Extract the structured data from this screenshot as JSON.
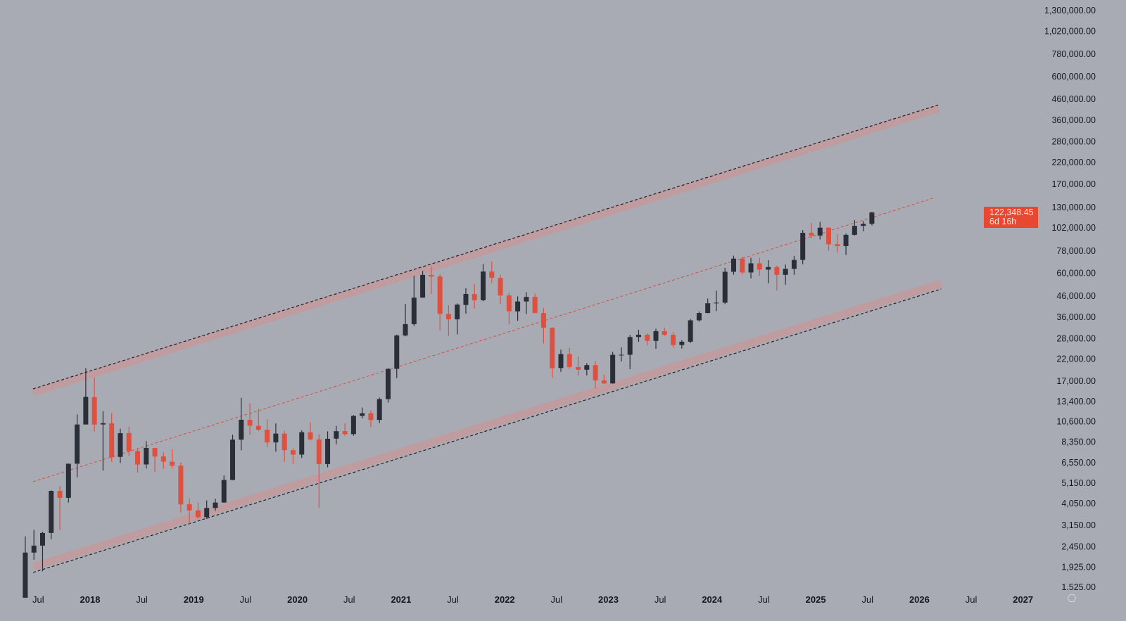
{
  "chart_data": {
    "type": "candlestick",
    "title": "",
    "y_scale": "log",
    "ylim": [
      1525,
      1300000
    ],
    "xlim": [
      "2017-04",
      "2027-01"
    ],
    "grid": false,
    "colors": {
      "background": "#a9abb4",
      "up": "#2a2e39",
      "down": "#e0503f",
      "band": "#c49a9d",
      "mid_line": "#d2503f",
      "price_tag": "#e8482f"
    },
    "y_ticks": [
      "1,300,000.00",
      "1,020,000.00",
      "780,000.00",
      "600,000.00",
      "460,000.00",
      "360,000.00",
      "280,000.00",
      "220,000.00",
      "170,000.00",
      "130,000.00",
      "102,000.00",
      "78,000.00",
      "60,000.00",
      "46,000.00",
      "36,000.00",
      "28,000.00",
      "22,000.00",
      "17,000.00",
      "13,400.00",
      "10,600.00",
      "8,350.00",
      "6,550.00",
      "5,150.00",
      "4,050.00",
      "3,150.00",
      "2,450.00",
      "1,925.00",
      "1.525.00"
    ],
    "y_tick_values": [
      1300000,
      1020000,
      780000,
      600000,
      460000,
      360000,
      280000,
      220000,
      170000,
      130000,
      102000,
      78000,
      60000,
      46000,
      36000,
      28000,
      22000,
      17000,
      13400,
      10600,
      8350,
      6550,
      5150,
      4050,
      3150,
      2450,
      1925,
      1525
    ],
    "x_ticks": [
      {
        "label": "Jul",
        "date": 2017.5,
        "year": false
      },
      {
        "label": "2018",
        "date": 2018,
        "year": true
      },
      {
        "label": "Jul",
        "date": 2018.5,
        "year": false
      },
      {
        "label": "2019",
        "date": 2019,
        "year": true
      },
      {
        "label": "Jul",
        "date": 2019.5,
        "year": false
      },
      {
        "label": "2020",
        "date": 2020,
        "year": true
      },
      {
        "label": "Jul",
        "date": 2020.5,
        "year": false
      },
      {
        "label": "2021",
        "date": 2021,
        "year": true
      },
      {
        "label": "Jul",
        "date": 2021.5,
        "year": false
      },
      {
        "label": "2022",
        "date": 2022,
        "year": true
      },
      {
        "label": "Jul",
        "date": 2022.5,
        "year": false
      },
      {
        "label": "2023",
        "date": 2023,
        "year": true
      },
      {
        "label": "Jul",
        "date": 2023.5,
        "year": false
      },
      {
        "label": "2024",
        "date": 2024,
        "year": true
      },
      {
        "label": "Jul",
        "date": 2024.5,
        "year": false
      },
      {
        "label": "2025",
        "date": 2025,
        "year": true
      },
      {
        "label": "Jul",
        "date": 2025.5,
        "year": false
      },
      {
        "label": "2026",
        "date": 2026,
        "year": true
      },
      {
        "label": "Jul",
        "date": 2026.5,
        "year": false
      },
      {
        "label": "2027",
        "date": 2027,
        "year": true
      }
    ],
    "channel": {
      "upper": {
        "from": [
          2017.45,
          15270
        ],
        "to": [
          2026.19,
          424700
        ]
      },
      "middle": {
        "from": [
          2017.45,
          5240
        ],
        "to": [
          2026.15,
          145600
        ]
      },
      "lower": {
        "from": [
          2017.45,
          1872
        ],
        "to": [
          2026.21,
          51640
        ]
      }
    },
    "ohlc_columns": [
      "month",
      "open",
      "high",
      "low",
      "close"
    ],
    "ohlc": [
      [
        "2017-05",
        1348,
        2763,
        1348,
        2286
      ],
      [
        "2017-06",
        2286,
        2980,
        2100,
        2480
      ],
      [
        "2017-07",
        2480,
        2916,
        1837,
        2875
      ],
      [
        "2017-08",
        2875,
        4736,
        2671,
        4703
      ],
      [
        "2017-09",
        4703,
        4979,
        2972,
        4339
      ],
      [
        "2017-10",
        4339,
        6470,
        4107,
        6468
      ],
      [
        "2017-11",
        6468,
        11517,
        5519,
        10233
      ],
      [
        "2017-12",
        10233,
        19783,
        10233,
        14156
      ],
      [
        "2018-01",
        14112,
        17712,
        9402,
        10221
      ],
      [
        "2018-02",
        10237,
        11958,
        5968,
        10397
      ],
      [
        "2018-03",
        10385,
        11711,
        6600,
        6973
      ],
      [
        "2018-04",
        7003,
        9745,
        6526,
        9240
      ],
      [
        "2018-05",
        9251,
        9964,
        7090,
        7494
      ],
      [
        "2018-06",
        7500,
        7754,
        5826,
        6404
      ],
      [
        "2018-07",
        6411,
        8424,
        6111,
        7780
      ],
      [
        "2018-08",
        7769,
        7769,
        5880,
        7037
      ],
      [
        "2018-09",
        7044,
        7389,
        6100,
        6625
      ],
      [
        "2018-10",
        6619,
        7680,
        6100,
        6318
      ],
      [
        "2018-11",
        6318,
        6552,
        3652,
        4017
      ],
      [
        "2018-12",
        4024,
        4309,
        3156,
        3742
      ],
      [
        "2019-01",
        3747,
        4109,
        3400,
        3457
      ],
      [
        "2019-02",
        3460,
        4210,
        3391,
        3854
      ],
      [
        "2019-03",
        3853,
        4296,
        3733,
        4105
      ],
      [
        "2019-04",
        4105,
        5642,
        4096,
        5350
      ],
      [
        "2019-05",
        5351,
        9075,
        5332,
        8574
      ],
      [
        "2019-06",
        8573,
        13970,
        7564,
        10817
      ],
      [
        "2019-07",
        10796,
        13147,
        9069,
        10085
      ],
      [
        "2019-08",
        10078,
        12273,
        9467,
        9630
      ],
      [
        "2019-09",
        9630,
        10898,
        7830,
        8293
      ],
      [
        "2019-10",
        8299,
        10370,
        7446,
        9199
      ],
      [
        "2019-11",
        9193,
        9505,
        6617,
        7569
      ],
      [
        "2019-12",
        7571,
        7743,
        6435,
        7193
      ],
      [
        "2020-01",
        7194,
        9554,
        6914,
        9350
      ],
      [
        "2020-02",
        9346,
        10500,
        8470,
        8599
      ],
      [
        "2020-03",
        8599,
        9167,
        3858,
        6438
      ],
      [
        "2020-04",
        6437,
        9440,
        6202,
        8658
      ],
      [
        "2020-05",
        8672,
        10067,
        8117,
        9461
      ],
      [
        "2020-06",
        9463,
        10380,
        8975,
        9137
      ],
      [
        "2020-07",
        9145,
        11434,
        8977,
        11323
      ],
      [
        "2020-08",
        11322,
        12468,
        10989,
        11680
      ],
      [
        "2020-09",
        11679,
        12067,
        9916,
        10784
      ],
      [
        "2020-10",
        10795,
        14028,
        10416,
        13781
      ],
      [
        "2020-11",
        13780,
        19749,
        13219,
        19625
      ],
      [
        "2020-12",
        19633,
        29300,
        17619,
        29001
      ],
      [
        "2021-01",
        28994,
        41946,
        28722,
        33115
      ],
      [
        "2021-02",
        33114,
        58352,
        32384,
        45137
      ],
      [
        "2021-03",
        45159,
        61683,
        45115,
        58918
      ],
      [
        "2021-04",
        58926,
        64863,
        47159,
        57750
      ],
      [
        "2021-05",
        57825,
        59519,
        30681,
        37332
      ],
      [
        "2021-06",
        37293,
        41295,
        28893,
        35040
      ],
      [
        "2021-07",
        35035,
        42235,
        29360,
        41626
      ],
      [
        "2021-08",
        41461,
        50482,
        37458,
        47166
      ],
      [
        "2021-09",
        47099,
        52853,
        39787,
        43790
      ],
      [
        "2021-10",
        43816,
        66930,
        43320,
        61318
      ],
      [
        "2021-11",
        61310,
        68789,
        53569,
        57005
      ],
      [
        "2021-12",
        56907,
        59041,
        42000,
        46306
      ],
      [
        "2022-01",
        46311,
        47882,
        32950,
        38483
      ],
      [
        "2022-02",
        38481,
        45821,
        34459,
        43193
      ],
      [
        "2022-03",
        43194,
        48086,
        37260,
        45538
      ],
      [
        "2022-04",
        45554,
        47313,
        37697,
        37714
      ],
      [
        "2022-05",
        37713,
        39902,
        26350,
        31792
      ],
      [
        "2022-06",
        31792,
        31957,
        17708,
        19784
      ],
      [
        "2022-07",
        19820,
        24572,
        18966,
        23336
      ],
      [
        "2022-08",
        23336,
        25135,
        19600,
        20050
      ],
      [
        "2022-09",
        20050,
        22673,
        18153,
        19423
      ],
      [
        "2022-10",
        19423,
        20988,
        18190,
        20496
      ],
      [
        "2022-11",
        20496,
        21446,
        15599,
        17168
      ],
      [
        "2022-12",
        17168,
        18318,
        16398,
        16548
      ],
      [
        "2023-01",
        16548,
        23955,
        16499,
        23139
      ],
      [
        "2023-02",
        23139,
        25250,
        21405,
        23147
      ],
      [
        "2023-03",
        23147,
        29190,
        19569,
        28478
      ],
      [
        "2023-04",
        28478,
        31000,
        26942,
        29268
      ],
      [
        "2023-05",
        29268,
        29820,
        25811,
        27219
      ],
      [
        "2023-06",
        27219,
        31389,
        24797,
        30477
      ],
      [
        "2023-07",
        30477,
        31814,
        28861,
        29230
      ],
      [
        "2023-08",
        29230,
        30176,
        25166,
        25940
      ],
      [
        "2023-09",
        25940,
        27483,
        24901,
        26962
      ],
      [
        "2023-10",
        26962,
        35198,
        26560,
        34639
      ],
      [
        "2023-11",
        34639,
        38430,
        34106,
        37724
      ],
      [
        "2023-12",
        37724,
        44700,
        37629,
        42283
      ],
      [
        "2024-01",
        42283,
        48969,
        38555,
        42582
      ],
      [
        "2024-02",
        42582,
        63913,
        41884,
        61130
      ],
      [
        "2024-03",
        61130,
        73750,
        59005,
        71333
      ],
      [
        "2024-04",
        71333,
        72797,
        59191,
        60637
      ],
      [
        "2024-05",
        60637,
        71980,
        56555,
        67491
      ],
      [
        "2024-06",
        67491,
        71949,
        58402,
        62678
      ],
      [
        "2024-07",
        62678,
        70016,
        53485,
        64619
      ],
      [
        "2024-08",
        64619,
        65593,
        49000,
        58974
      ],
      [
        "2024-09",
        58974,
        66498,
        52550,
        63327
      ],
      [
        "2024-10",
        63327,
        73620,
        58946,
        70215
      ],
      [
        "2024-11",
        70215,
        99588,
        66803,
        96449
      ],
      [
        "2024-12",
        96449,
        108353,
        90500,
        93429
      ],
      [
        "2025-01",
        93429,
        109588,
        89256,
        102405
      ],
      [
        "2025-02",
        102405,
        102750,
        78258,
        84350
      ],
      [
        "2025-03",
        84350,
        95000,
        76600,
        82550
      ],
      [
        "2025-04",
        82550,
        95750,
        74500,
        94200
      ],
      [
        "2025-05",
        94200,
        111980,
        93350,
        104600
      ],
      [
        "2025-06",
        104600,
        110600,
        98200,
        107150
      ],
      [
        "2025-07",
        107150,
        123200,
        105100,
        122348
      ]
    ],
    "last_price": "122,348.45",
    "countdown": "6d 16h"
  }
}
